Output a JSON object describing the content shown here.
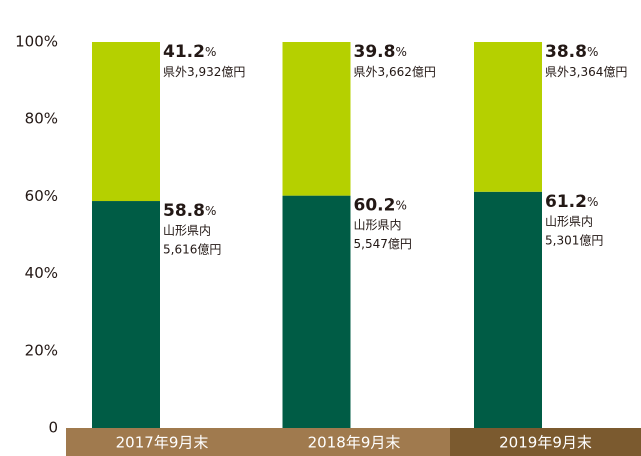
{
  "chart_data": {
    "type": "bar",
    "stacked": true,
    "categories": [
      "2017年9月末",
      "2018年9月末",
      "2019年9月末"
    ],
    "category_colors": [
      "#a07a4e",
      "#a07a4e",
      "#7b5a2f"
    ],
    "unit": "%",
    "series": [
      {
        "name": "山形県内",
        "color": "#005c45",
        "values": [
          58.8,
          60.2,
          61.2
        ],
        "amount_labels": [
          "5,616億円",
          "5,547億円",
          "5,301億円"
        ]
      },
      {
        "name": "県外",
        "color": "#b5d000",
        "values": [
          41.2,
          39.8,
          38.8
        ],
        "amount_labels": [
          "3,932億円",
          "3,662億円",
          "3,364億円"
        ]
      }
    ],
    "ylim": [
      0,
      100
    ],
    "yticks": [
      0,
      {
        "value": 20,
        "label": "20%"
      },
      {
        "value": 40,
        "label": "40%"
      },
      {
        "value": 60,
        "label": "60%"
      },
      {
        "value": 80,
        "label": "80%"
      },
      {
        "value": 100,
        "label": "100%"
      }
    ],
    "grid": false
  }
}
